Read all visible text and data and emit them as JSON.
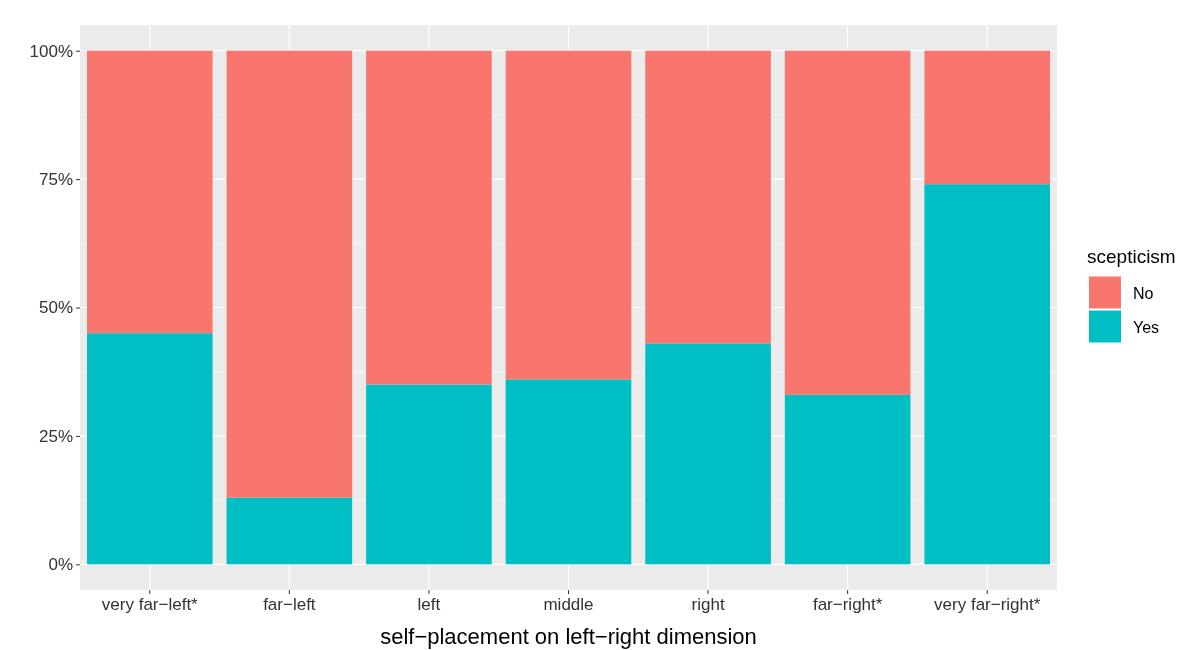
{
  "chart_data": {
    "type": "bar",
    "stacked": true,
    "xlabel": "self−placement on left−right dimension",
    "legend_title": "scepticism",
    "legend": "right",
    "categories": [
      "very far−left*",
      "far−left",
      "left",
      "middle",
      "right",
      "far−right*",
      "very far−right*"
    ],
    "series": [
      {
        "name": "Yes",
        "color": "#00bfc4",
        "values": [
          45,
          13,
          35,
          36,
          43,
          33,
          74
        ]
      },
      {
        "name": "No",
        "color": "#f8766d",
        "values": [
          55,
          87,
          65,
          64,
          57,
          67,
          26
        ]
      }
    ],
    "ylim": [
      -5,
      105
    ],
    "yticks": [
      {
        "value": 0,
        "label": "0%"
      },
      {
        "value": 25,
        "label": "25%"
      },
      {
        "value": 50,
        "label": "50%"
      },
      {
        "value": 75,
        "label": "75%"
      },
      {
        "value": 100,
        "label": "100%"
      }
    ],
    "grid": true
  }
}
